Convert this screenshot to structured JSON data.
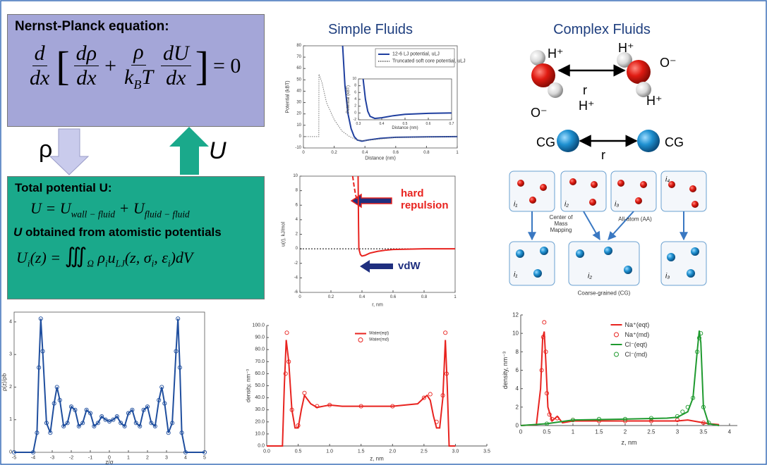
{
  "nernst": {
    "title": "Nernst-Planck equation:",
    "d": "d",
    "dx1": "dx",
    "open": "[",
    "drho": "dρ",
    "dx2": "dx",
    "plus": "+",
    "rho": "ρ",
    "k": "k",
    "kb": "B",
    "t": "T",
    "du": "dU",
    "dx3": "dx",
    "close": "]",
    "eq": "= 0"
  },
  "arrows": {
    "rho": "ρ",
    "u": "U"
  },
  "total_potential": {
    "title": "Total potential U:",
    "u1": "U = U",
    "sub1": "wall − fluid",
    "u2": " + U",
    "sub2": "fluid − fluid",
    "note_u": "U",
    "note": " obtained from atomistic potentials",
    "ui": "U",
    "ui_sub": "i",
    "ui_rest": "(z) = ",
    "integral": "∭",
    "omega": "Ω",
    "rho": "ρ",
    "rho_sub": "i",
    "u": "u",
    "u_sub": "LJ",
    "args1": "(z, σ",
    "s_sub": "i",
    "args2": ", ε",
    "e_sub": "i",
    "args3": ")dV"
  },
  "simple_fluids": {
    "title": "Simple Fluids"
  },
  "complex_fluids": {
    "title": "Complex Fluids",
    "molecule_labels": [
      "H⁺",
      "H⁺",
      "O⁻",
      "O⁻",
      "H⁺",
      "H⁺"
    ],
    "r": "r",
    "cg_left": "CG",
    "cg_right": "CG",
    "cg_r": "r",
    "mapping": {
      "aa_groups": [
        "i₁",
        "i₂",
        "i₃",
        "i₄"
      ],
      "cg_groups": [
        "i₁",
        "i₂",
        "i₃"
      ],
      "center_of_mass": "Center of Mass Mapping",
      "all_atom": "All-atom (AA)",
      "coarse_grained": "Coarse-grained (CG)"
    }
  },
  "chart_data": [
    {
      "type": "line",
      "xlabel": "Distance (nm)",
      "ylabel": "Potential (kBT)",
      "xlim": [
        0,
        1
      ],
      "ylim": [
        -10,
        80
      ],
      "xticks": [
        0,
        0.2,
        0.4,
        0.6,
        0.8,
        1
      ],
      "yticks": [
        -10,
        0,
        10,
        20,
        30,
        40,
        50,
        60,
        70,
        80
      ],
      "legend": "upper right",
      "series": [
        {
          "name": "12-6 LJ potential, uLJ",
          "color": "#1f3f9f",
          "style": "line",
          "x": [
            0.255,
            0.27,
            0.29,
            0.31,
            0.33,
            0.35,
            0.38,
            0.42,
            0.5,
            0.6,
            0.8,
            1.0
          ],
          "values": [
            80,
            45,
            20,
            7,
            0,
            -3,
            -4,
            -3,
            -1.5,
            -0.6,
            -0.2,
            0
          ]
        },
        {
          "name": "Truncated soft core potential, uLJ",
          "color": "#777777",
          "style": "dotted",
          "x": [
            0,
            0.1,
            0.101,
            0.12,
            0.15,
            0.2,
            0.25,
            0.3,
            0.35,
            0.4,
            0.6,
            1.0
          ],
          "values": [
            0,
            0,
            55,
            48,
            30,
            15,
            5,
            0,
            -3,
            -3.5,
            -0.8,
            0
          ]
        }
      ]
    },
    {
      "type": "line",
      "xlabel": "Distance (nm)",
      "ylabel": "Potential (kBT)",
      "xlim": [
        0.3,
        0.7
      ],
      "ylim": [
        -2,
        10
      ],
      "xticks": [
        0.3,
        0.4,
        0.5,
        0.6,
        0.7
      ],
      "yticks": [
        -2,
        0,
        2,
        4,
        6,
        8,
        10
      ],
      "series": [
        {
          "color": "#1f3f9f",
          "style": "line",
          "x": [
            0.32,
            0.33,
            0.34,
            0.35,
            0.37,
            0.4,
            0.45,
            0.5,
            0.6,
            0.7
          ],
          "values": [
            10,
            4,
            0.5,
            -1,
            -1.6,
            -1.4,
            -0.8,
            -0.4,
            -0.1,
            0
          ]
        }
      ]
    },
    {
      "type": "line",
      "xlabel": "r, nm",
      "ylabel": "u(r), kJ/mol",
      "xlim": [
        0,
        1
      ],
      "ylim": [
        -6,
        10
      ],
      "xticks": [
        0,
        0.2,
        0.4,
        0.6,
        0.8,
        1
      ],
      "yticks": [
        -6,
        -4,
        -2,
        0,
        2,
        4,
        6,
        8,
        10
      ],
      "hline": 0,
      "annotations": [
        "hard repulsion",
        "vdW"
      ],
      "series": [
        {
          "color": "#e8231f",
          "style": "line",
          "x": [
            0.375,
            0.378,
            0.38,
            0.39,
            0.4,
            0.42,
            0.45,
            0.5,
            0.55,
            0.6,
            0.7,
            0.8,
            1.0
          ],
          "values": [
            10,
            3,
            0,
            -0.8,
            -1.0,
            -0.9,
            -0.6,
            -0.35,
            -0.2,
            -0.1,
            -0.05,
            0,
            0
          ]
        },
        {
          "color": "#e8231f",
          "style": "dashed",
          "x": [
            0.34,
            0.35,
            0.36,
            0.37
          ],
          "values": [
            10,
            8.5,
            7.3,
            6.8
          ]
        }
      ]
    },
    {
      "type": "line",
      "xlabel": "z/σ",
      "ylabel": "ρ(z)/ρb",
      "xlim": [
        -5,
        5
      ],
      "ylim": [
        0,
        4.3
      ],
      "xticks": [
        -5,
        -4,
        -3,
        -2,
        -1,
        0,
        1,
        2,
        3,
        4,
        5
      ],
      "yticks": [
        0,
        1,
        2,
        3,
        4
      ],
      "series": [
        {
          "color": "#1f4e9e",
          "style": "line",
          "markers": true,
          "x": [
            -5,
            -4,
            -3.8,
            -3.7,
            -3.6,
            -3.5,
            -3.3,
            -3.1,
            -2.9,
            -2.75,
            -2.6,
            -2.4,
            -2.2,
            -2.0,
            -1.8,
            -1.6,
            -1.4,
            -1.2,
            -1.0,
            -0.8,
            -0.6,
            -0.4,
            -0.2,
            0,
            0.2,
            0.4,
            0.6,
            0.8,
            1.0,
            1.2,
            1.4,
            1.6,
            1.8,
            2.0,
            2.2,
            2.4,
            2.6,
            2.75,
            2.9,
            3.1,
            3.3,
            3.5,
            3.6,
            3.7,
            3.8,
            4,
            5
          ],
          "values": [
            0,
            0,
            0.6,
            2.6,
            4.1,
            3.1,
            0.9,
            0.6,
            1.5,
            2.0,
            1.6,
            0.8,
            0.9,
            1.4,
            1.3,
            0.8,
            0.9,
            1.3,
            1.2,
            0.8,
            0.9,
            1.1,
            1.0,
            0.95,
            1.0,
            1.1,
            0.9,
            0.8,
            1.2,
            1.3,
            0.9,
            0.8,
            1.3,
            1.4,
            0.9,
            0.8,
            1.6,
            2.0,
            1.5,
            0.6,
            0.9,
            3.1,
            4.1,
            2.6,
            0.6,
            0,
            0
          ]
        }
      ]
    },
    {
      "type": "line",
      "xlabel": "z, nm",
      "ylabel": "density, nm⁻³",
      "xlim": [
        0,
        3.5
      ],
      "ylim": [
        0,
        100
      ],
      "xticks": [
        {
          "value": 0,
          "label": "0.0"
        },
        0.5,
        {
          "value": 1,
          "label": "1.0"
        },
        1.5,
        {
          "value": 2,
          "label": "2.0"
        },
        2.5,
        {
          "value": 3,
          "label": "3.0"
        },
        3.5
      ],
      "yticks": [
        {
          "value": 0,
          "label": "0.0"
        },
        {
          "value": 10,
          "label": "10.0"
        },
        {
          "value": 20,
          "label": "20.0"
        },
        {
          "value": 30,
          "label": "30.0"
        },
        {
          "value": 40,
          "label": "40.0"
        },
        {
          "value": 50,
          "label": "50.0"
        },
        {
          "value": 60,
          "label": "60.0"
        },
        {
          "value": 70,
          "label": "70.0"
        },
        {
          "value": 80,
          "label": "80.0"
        },
        {
          "value": 90,
          "label": "90.0"
        },
        {
          "value": 100,
          "label": "100.0"
        }
      ],
      "legend": "upper center",
      "series": [
        {
          "name": "Water(eqt)",
          "color": "#e8231f",
          "style": "line",
          "x": [
            0,
            0.25,
            0.28,
            0.31,
            0.35,
            0.4,
            0.45,
            0.5,
            0.55,
            0.6,
            0.7,
            0.8,
            0.9,
            1.0,
            1.2,
            1.5,
            1.8,
            2.0,
            2.2,
            2.4,
            2.5,
            2.55,
            2.6,
            2.65,
            2.7,
            2.75,
            2.8,
            2.84,
            2.87,
            2.9,
            3.0
          ],
          "values": [
            0,
            0,
            50,
            88,
            70,
            30,
            15,
            15,
            30,
            42,
            35,
            32,
            33,
            34,
            33,
            33,
            33,
            33,
            34,
            35,
            40,
            42,
            38,
            25,
            15,
            15,
            40,
            88,
            50,
            0,
            0
          ]
        },
        {
          "name": "Water(md)",
          "color": "#e8231f",
          "style": "none",
          "markers": true,
          "x": [
            0.3,
            0.32,
            0.35,
            0.4,
            0.5,
            0.6,
            0.8,
            1.0,
            1.5,
            2.0,
            2.5,
            2.6,
            2.7,
            2.8,
            2.84,
            2.86
          ],
          "values": [
            60,
            94,
            70,
            30,
            17,
            44,
            33,
            34,
            33,
            33,
            40,
            43,
            20,
            42,
            94,
            60
          ]
        }
      ]
    },
    {
      "type": "line",
      "xlabel": "z, nm",
      "ylabel": "density, nm⁻³",
      "xlim": [
        0,
        4.15
      ],
      "ylim": [
        0,
        12
      ],
      "xticks": [
        0,
        0.5,
        1,
        1.5,
        2,
        2.5,
        3,
        3.5,
        4
      ],
      "yticks": [
        0,
        2,
        4,
        6,
        8,
        10,
        12
      ],
      "legend": "upper center",
      "series": [
        {
          "name": "Na⁺(eqt)",
          "color": "#e8231f",
          "style": "line",
          "x": [
            0,
            0.3,
            0.38,
            0.42,
            0.45,
            0.48,
            0.52,
            0.6,
            0.7,
            0.8,
            1.0,
            2.0,
            3.0,
            3.2,
            3.4,
            3.6,
            3.8
          ],
          "values": [
            0,
            0.1,
            4,
            9.5,
            10.2,
            7,
            2,
            0.5,
            1,
            0.3,
            0.5,
            0.5,
            0.5,
            0.6,
            0.4,
            0.2,
            0.1
          ]
        },
        {
          "name": "Na⁺(md)",
          "color": "#e8231f",
          "style": "none",
          "markers": true,
          "x": [
            0.4,
            0.43,
            0.45,
            0.48,
            0.5,
            0.55,
            0.6,
            0.7,
            1.0,
            1.5,
            2.0,
            2.5,
            3.0,
            3.5
          ],
          "values": [
            6,
            9.6,
            11.2,
            8,
            3.5,
            1.2,
            0.7,
            0.8,
            0.6,
            0.5,
            0.5,
            0.5,
            0.6,
            0.3
          ]
        },
        {
          "name": "Cl⁻(eqt)",
          "color": "#1f9a2f",
          "style": "line",
          "x": [
            0,
            0.5,
            1.0,
            2.0,
            2.8,
            3.0,
            3.2,
            3.3,
            3.38,
            3.42,
            3.45,
            3.5,
            3.6,
            3.8
          ],
          "values": [
            0,
            0.2,
            0.6,
            0.7,
            0.8,
            0.9,
            1.5,
            3,
            8,
            10.3,
            9,
            2,
            0.2,
            0
          ]
        },
        {
          "name": "Cl⁻(md)",
          "color": "#1f9a2f",
          "style": "none",
          "markers": true,
          "x": [
            0.5,
            1.0,
            1.5,
            2.0,
            2.5,
            3.0,
            3.1,
            3.2,
            3.3,
            3.38,
            3.42,
            3.45,
            3.5,
            3.6
          ],
          "values": [
            0.2,
            0.6,
            0.7,
            0.7,
            0.8,
            1.0,
            1.5,
            2,
            3,
            8,
            9.5,
            10,
            2,
            0.3
          ]
        }
      ]
    }
  ]
}
